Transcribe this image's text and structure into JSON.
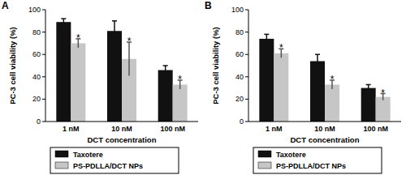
{
  "chart_data": [
    {
      "type": "bar",
      "title": "A",
      "y_label": "PC-3 cell viability (%)",
      "x_label": "DCT concentration",
      "categories": [
        "1 nM",
        "10 nM",
        "100 nM"
      ],
      "series": [
        {
          "name": "Taxotere",
          "color": "#111111",
          "values": [
            89,
            81,
            46
          ],
          "errors": [
            3,
            9,
            4
          ]
        },
        {
          "name": "PS-PDLLA/DCT NPs",
          "color": "#c6c6c6",
          "values": [
            70,
            56,
            33
          ],
          "errors": [
            4,
            15,
            4
          ]
        }
      ],
      "annotations": [
        {
          "text": "*",
          "series": "PS-PDLLA/DCT NPs",
          "category": "1 nM"
        },
        {
          "text": "*",
          "series": "PS-PDLLA/DCT NPs",
          "category": "10 nM"
        },
        {
          "text": "*",
          "series": "PS-PDLLA/DCT NPs",
          "category": "100 nM"
        }
      ],
      "ylim": [
        0,
        100
      ],
      "yticks": [
        0,
        20,
        40,
        60,
        80,
        100
      ],
      "grid": false,
      "legend": "bottom"
    },
    {
      "type": "bar",
      "title": "B",
      "y_label": "PC-3 cell viability (%)",
      "x_label": "DCT concentration",
      "categories": [
        "1 nM",
        "10 nM",
        "100 nM"
      ],
      "series": [
        {
          "name": "Taxotere",
          "color": "#111111",
          "values": [
            74,
            54,
            30
          ],
          "errors": [
            4,
            6,
            3
          ]
        },
        {
          "name": "PS-PDLLA/DCT NPs",
          "color": "#c6c6c6",
          "values": [
            61,
            33,
            22
          ],
          "errors": [
            4,
            4,
            3
          ]
        }
      ],
      "annotations": [
        {
          "text": "*",
          "series": "PS-PDLLA/DCT NPs",
          "category": "1 nM"
        },
        {
          "text": "*",
          "series": "PS-PDLLA/DCT NPs",
          "category": "10 nM"
        },
        {
          "text": "*",
          "series": "PS-PDLLA/DCT NPs",
          "category": "100 nM"
        }
      ],
      "ylim": [
        0,
        100
      ],
      "yticks": [
        0,
        20,
        40,
        60,
        80,
        100
      ],
      "grid": false,
      "legend": "bottom"
    }
  ]
}
